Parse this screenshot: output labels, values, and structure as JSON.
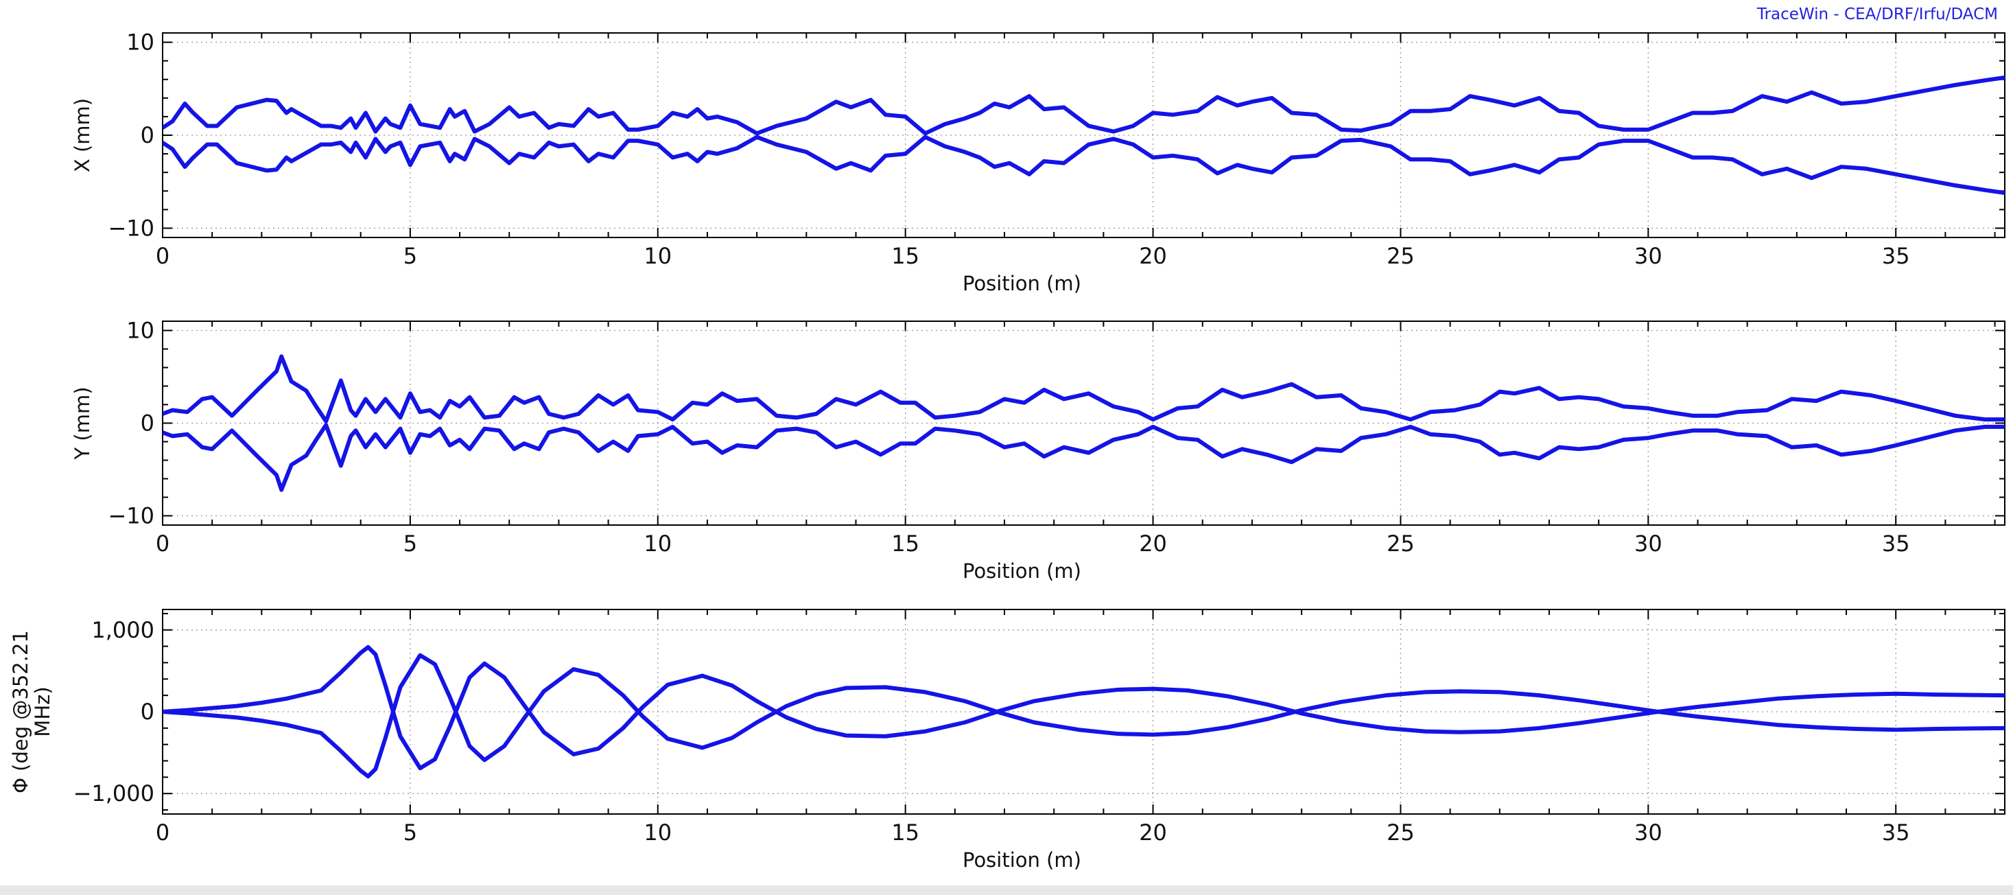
{
  "credit": "TraceWin - CEA/DRF/Irfu/DACM",
  "colors": {
    "trace": "#1414e6",
    "grid": "#9a9a9a",
    "axis": "#000000"
  },
  "chart_data": [
    {
      "type": "line",
      "ylabel": "X (mm)",
      "xlabel": "Position (m)",
      "xlim": [
        0,
        37.2
      ],
      "ylim": [
        -11,
        11
      ],
      "xticks": [
        0,
        5,
        10,
        15,
        20,
        25,
        30,
        35
      ],
      "xtick_labels": [
        "0",
        "5",
        "10",
        "15",
        "20",
        "25",
        "30",
        "35"
      ],
      "yticks": [
        -10,
        0,
        10
      ],
      "ytick_labels": [
        "−10",
        "0",
        "10"
      ],
      "grid": true,
      "symmetric_envelope": true,
      "x": [
        0,
        0.2,
        0.45,
        0.6,
        0.9,
        1.1,
        1.5,
        2.1,
        2.3,
        2.5,
        2.6,
        2.8,
        3.2,
        3.4,
        3.6,
        3.8,
        3.9,
        4.1,
        4.3,
        4.5,
        4.6,
        4.8,
        5.0,
        5.2,
        5.4,
        5.6,
        5.8,
        5.9,
        6.1,
        6.3,
        6.6,
        7.0,
        7.2,
        7.5,
        7.8,
        8.0,
        8.3,
        8.6,
        8.8,
        9.1,
        9.4,
        9.6,
        10.0,
        10.3,
        10.6,
        10.8,
        11.0,
        11.2,
        11.6,
        12.0,
        12.4,
        13.0,
        13.6,
        13.9,
        14.3,
        14.6,
        15.0,
        15.4,
        15.8,
        16.2,
        16.5,
        16.8,
        17.1,
        17.5,
        17.8,
        18.2,
        18.7,
        19.2,
        19.6,
        20.0,
        20.4,
        20.9,
        21.3,
        21.7,
        22.0,
        22.4,
        22.8,
        23.3,
        23.8,
        24.2,
        24.8,
        25.2,
        25.6,
        26.0,
        26.4,
        26.8,
        27.3,
        27.8,
        28.2,
        28.6,
        29.0,
        29.5,
        30.0,
        30.4,
        30.9,
        31.3,
        31.7,
        32.3,
        32.8,
        33.3,
        33.9,
        34.4,
        34.6,
        35.0,
        35.6,
        36.2,
        36.8,
        37.2
      ],
      "y": [
        0.8,
        1.5,
        3.4,
        2.5,
        1.0,
        1.0,
        3.0,
        3.8,
        3.7,
        2.4,
        2.8,
        2.2,
        1.0,
        1.0,
        0.8,
        1.8,
        0.8,
        2.4,
        0.4,
        1.8,
        1.2,
        0.8,
        3.2,
        1.2,
        1.0,
        0.8,
        2.8,
        2.0,
        2.6,
        0.4,
        1.2,
        3.0,
        2.0,
        2.4,
        0.8,
        1.2,
        1.0,
        2.8,
        2.0,
        2.4,
        0.6,
        0.6,
        1.0,
        2.4,
        2.0,
        2.8,
        1.8,
        2.0,
        1.4,
        0.2,
        1.0,
        1.8,
        3.6,
        3.0,
        3.8,
        2.2,
        2.0,
        0.2,
        1.2,
        1.8,
        2.4,
        3.4,
        3.0,
        4.2,
        2.8,
        3.0,
        1.0,
        0.4,
        1.0,
        2.4,
        2.2,
        2.6,
        4.1,
        3.2,
        3.6,
        4.0,
        2.4,
        2.2,
        0.6,
        0.5,
        1.2,
        2.6,
        2.6,
        2.8,
        4.2,
        3.8,
        3.2,
        4.0,
        2.6,
        2.4,
        1.0,
        0.6,
        0.6,
        1.4,
        2.4,
        2.4,
        2.6,
        4.2,
        3.6,
        4.6,
        3.4,
        3.6,
        3.8,
        4.2,
        4.8,
        5.4,
        5.9,
        6.2
      ]
    },
    {
      "type": "line",
      "ylabel": "Y (mm)",
      "xlabel": "Position (m)",
      "xlim": [
        0,
        37.2
      ],
      "ylim": [
        -11,
        11
      ],
      "xticks": [
        0,
        5,
        10,
        15,
        20,
        25,
        30,
        35
      ],
      "xtick_labels": [
        "0",
        "5",
        "10",
        "15",
        "20",
        "25",
        "30",
        "35"
      ],
      "yticks": [
        -10,
        0,
        10
      ],
      "ytick_labels": [
        "−10",
        "0",
        "10"
      ],
      "grid": true,
      "symmetric_envelope": true,
      "x": [
        0,
        0.2,
        0.5,
        0.8,
        1.0,
        1.4,
        1.9,
        2.3,
        2.4,
        2.6,
        2.9,
        3.1,
        3.3,
        3.6,
        3.8,
        3.9,
        4.1,
        4.3,
        4.5,
        4.8,
        5.0,
        5.2,
        5.4,
        5.6,
        5.8,
        6.0,
        6.2,
        6.5,
        6.8,
        7.1,
        7.3,
        7.6,
        7.8,
        8.1,
        8.4,
        8.8,
        9.1,
        9.4,
        9.6,
        10.0,
        10.3,
        10.7,
        11.0,
        11.3,
        11.6,
        12.0,
        12.4,
        12.8,
        13.2,
        13.6,
        14.0,
        14.5,
        14.9,
        15.2,
        15.6,
        16.0,
        16.5,
        17.0,
        17.4,
        17.8,
        18.2,
        18.7,
        19.2,
        19.7,
        20.0,
        20.5,
        20.9,
        21.4,
        21.8,
        22.3,
        22.8,
        23.3,
        23.8,
        24.2,
        24.7,
        25.2,
        25.6,
        26.1,
        26.6,
        27.0,
        27.3,
        27.8,
        28.2,
        28.6,
        29.0,
        29.5,
        30.0,
        30.4,
        30.9,
        31.4,
        31.8,
        32.4,
        32.9,
        33.4,
        33.9,
        34.5,
        35.0,
        35.6,
        36.2,
        36.8,
        37.2
      ],
      "y": [
        1.0,
        1.4,
        1.2,
        2.6,
        2.8,
        0.8,
        3.5,
        5.6,
        7.2,
        4.5,
        3.5,
        1.8,
        0.2,
        4.6,
        1.4,
        0.8,
        2.6,
        1.2,
        2.6,
        0.6,
        3.2,
        1.2,
        1.4,
        0.6,
        2.4,
        1.8,
        2.8,
        0.6,
        0.8,
        2.8,
        2.2,
        2.8,
        1.0,
        0.6,
        1.0,
        3.0,
        2.0,
        3.0,
        1.4,
        1.2,
        0.4,
        2.2,
        2.0,
        3.2,
        2.4,
        2.6,
        0.8,
        0.6,
        1.0,
        2.6,
        2.0,
        3.4,
        2.2,
        2.2,
        0.6,
        0.8,
        1.2,
        2.6,
        2.2,
        3.6,
        2.6,
        3.2,
        1.8,
        1.2,
        0.4,
        1.6,
        1.8,
        3.6,
        2.8,
        3.4,
        4.2,
        2.8,
        3.0,
        1.6,
        1.2,
        0.4,
        1.2,
        1.4,
        2.0,
        3.4,
        3.2,
        3.8,
        2.6,
        2.8,
        2.6,
        1.8,
        1.6,
        1.2,
        0.8,
        0.8,
        1.2,
        1.4,
        2.6,
        2.4,
        3.4,
        3.0,
        2.4,
        1.6,
        0.8,
        0.4,
        0.4
      ]
    },
    {
      "type": "line",
      "ylabel": "Φ (deg @352.21 MHz)",
      "xlabel": "Position (m)",
      "xlim": [
        0,
        37.2
      ],
      "ylim": [
        -1250,
        1250
      ],
      "xticks": [
        0,
        5,
        10,
        15,
        20,
        25,
        30,
        35
      ],
      "xtick_labels": [
        "0",
        "5",
        "10",
        "15",
        "20",
        "25",
        "30",
        "35"
      ],
      "yticks": [
        -1000,
        0,
        1000
      ],
      "ytick_labels": [
        "−1,000",
        "0",
        "1,000"
      ],
      "grid": true,
      "symmetric_envelope": false,
      "x": [
        0,
        0.5,
        1.0,
        1.5,
        2.0,
        2.5,
        3.2,
        3.6,
        4.0,
        4.15,
        4.3,
        4.5,
        4.8,
        5.2,
        5.5,
        5.8,
        6.2,
        6.5,
        6.9,
        7.3,
        7.7,
        8.3,
        8.8,
        9.3,
        9.7,
        10.2,
        10.9,
        11.5,
        12.0,
        12.6,
        13.2,
        13.8,
        14.6,
        15.4,
        16.2,
        16.9,
        17.6,
        18.5,
        19.3,
        20.0,
        20.7,
        21.5,
        22.3,
        23.0,
        23.8,
        24.7,
        25.5,
        26.2,
        27.0,
        27.8,
        28.6,
        29.4,
        30.2,
        31.0,
        31.8,
        32.6,
        33.4,
        34.2,
        35.0,
        35.8,
        36.5,
        37.2
      ],
      "y": [
        0,
        20,
        45,
        70,
        110,
        160,
        260,
        480,
        720,
        790,
        700,
        320,
        -300,
        -690,
        -580,
        -180,
        420,
        590,
        420,
        80,
        -250,
        -520,
        -450,
        -200,
        60,
        330,
        440,
        320,
        130,
        -70,
        -210,
        -290,
        -300,
        -240,
        -130,
        10,
        130,
        220,
        270,
        280,
        260,
        190,
        90,
        -20,
        -120,
        -200,
        -240,
        -250,
        -240,
        -200,
        -140,
        -70,
        0,
        60,
        110,
        160,
        190,
        210,
        220,
        210,
        205,
        200
      ]
    }
  ]
}
